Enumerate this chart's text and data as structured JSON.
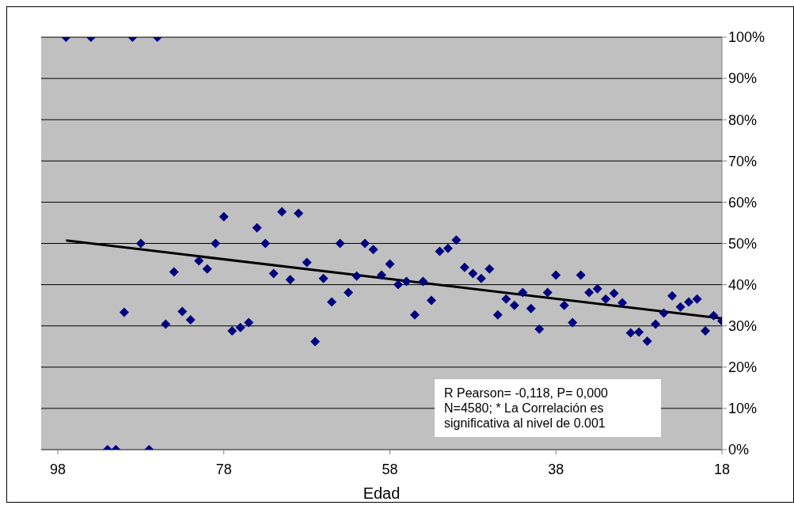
{
  "chart_data": {
    "type": "scatter",
    "xlabel": "Edad",
    "xlim": [
      100,
      18
    ],
    "xticks": [
      98,
      78,
      58,
      38,
      18
    ],
    "ylim": [
      0,
      1
    ],
    "yticks": [
      {
        "value": 0,
        "label": "0%"
      },
      {
        "value": 0.1,
        "label": "10%"
      },
      {
        "value": 0.2,
        "label": "20%"
      },
      {
        "value": 0.3,
        "label": "30%"
      },
      {
        "value": 0.4,
        "label": "40%"
      },
      {
        "value": 0.5,
        "label": "50%"
      },
      {
        "value": 0.6,
        "label": "60%"
      },
      {
        "value": 0.7,
        "label": "70%"
      },
      {
        "value": 0.8,
        "label": "80%"
      },
      {
        "value": 0.9,
        "label": "90%"
      },
      {
        "value": 1,
        "label": "100%"
      }
    ],
    "grid": "y",
    "marker": "diamond",
    "series": [
      {
        "color": "#000080",
        "x": [
          97,
          94,
          92,
          91,
          90,
          89,
          88,
          87,
          86,
          85,
          84,
          83,
          82,
          81,
          80,
          79,
          78,
          77,
          76,
          75,
          74,
          73,
          72,
          71,
          70,
          69,
          68,
          67,
          66,
          65,
          64,
          63,
          62,
          61,
          60,
          59,
          58,
          57,
          56,
          55,
          54,
          53,
          52,
          51,
          50,
          49,
          48,
          47,
          46,
          45,
          44,
          43,
          42,
          41,
          40,
          39,
          38,
          37,
          36,
          35,
          34,
          33,
          32,
          31,
          30,
          29,
          28,
          27,
          26,
          25,
          24,
          23,
          22,
          21,
          20,
          19,
          18
        ],
        "values": [
          1,
          1,
          0,
          0,
          0.333,
          1,
          0.5,
          0,
          1,
          0.304,
          0.431,
          0.335,
          0.315,
          0.458,
          0.438,
          0.5,
          0.565,
          0.288,
          0.296,
          0.308,
          0.538,
          0.5,
          0.427,
          0.577,
          0.412,
          0.573,
          0.454,
          0.262,
          0.415,
          0.358,
          0.5,
          0.381,
          0.421,
          0.5,
          0.485,
          0.423,
          0.45,
          0.4,
          0.408,
          0.327,
          0.408,
          0.362,
          0.481,
          0.488,
          0.508,
          0.442,
          0.427,
          0.415,
          0.438,
          0.327,
          0.365,
          0.35,
          0.381,
          0.342,
          0.292,
          0.381,
          0.423,
          0.35,
          0.308,
          0.423,
          0.381,
          0.39,
          0.365,
          0.379,
          0.356,
          0.283,
          0.285,
          0.263,
          0.304,
          0.331,
          0.373,
          0.346,
          0.358,
          0.365,
          0.288,
          0.325,
          0.312
        ]
      },
      {
        "type": "line",
        "color": "#000000",
        "marker": "none",
        "line_style": "solid",
        "x": [
          97,
          18
        ],
        "values": [
          0.507,
          0.318
        ]
      }
    ],
    "annotations": [
      "R Pearson= -0,118, P= 0,000",
      "N=4580; * La Correlación es significativa al nivel de 0.001"
    ]
  }
}
